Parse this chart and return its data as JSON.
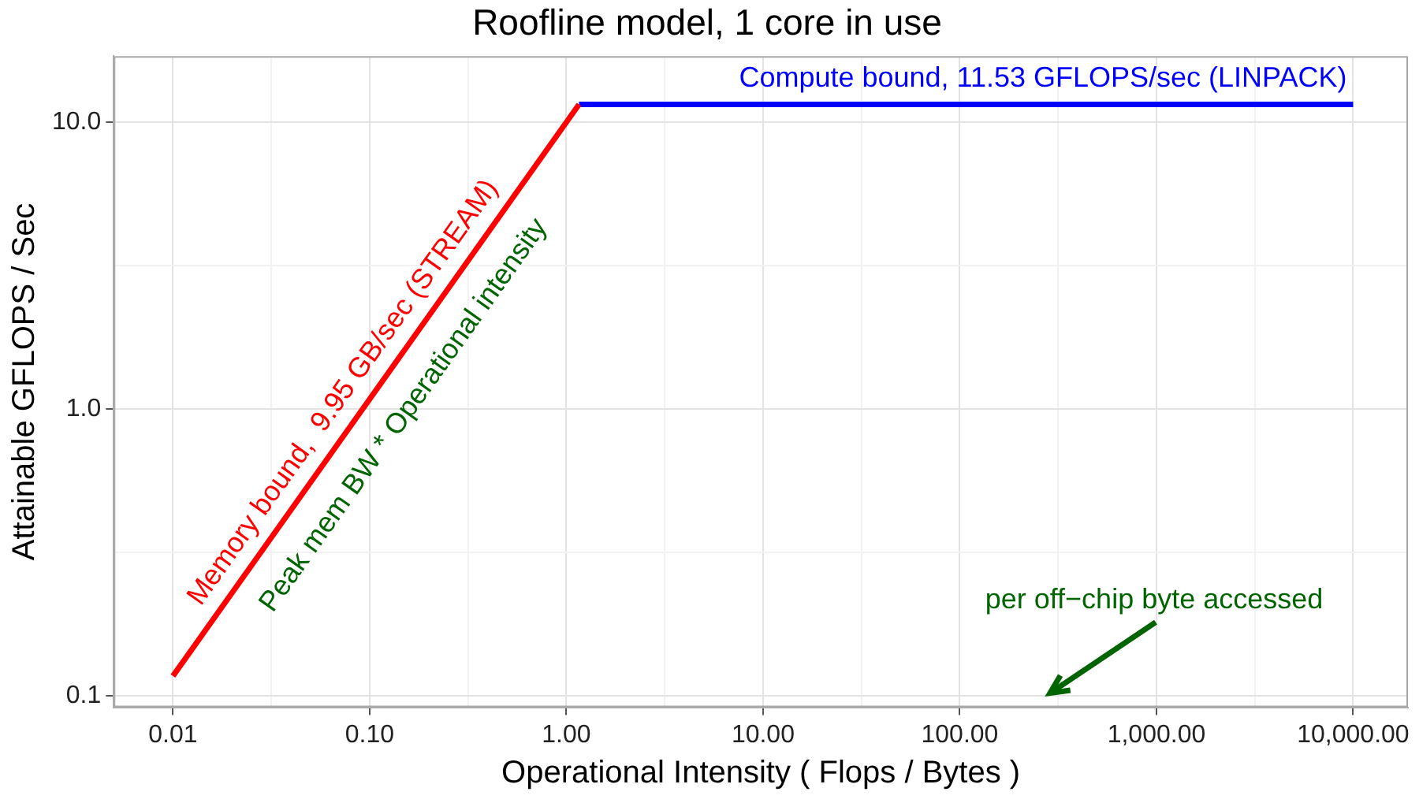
{
  "chart_data": {
    "type": "line",
    "title": "Roofline model, 1 core in use",
    "xlabel": "Operational Intensity ( Flops / Bytes )",
    "ylabel": "Attainable GFLOPS / Sec",
    "series": [
      {
        "name": "Memory bound,  9.95 GB/sec (STREAM)",
        "color": "#ff0000",
        "x": [
          0.01,
          1.16
        ],
        "values": [
          0.117,
          11.53
        ]
      },
      {
        "name": "Compute bound, 11.53 GFLOPS/sec (LINPACK)",
        "color": "#0000ff",
        "x": [
          1.16,
          10000
        ],
        "values": [
          11.53,
          11.53
        ]
      }
    ],
    "annotations": [
      {
        "text": "Peak mem BW * Operational intensity",
        "x": 0.104,
        "y": 1.13
      },
      "per off−chip byte accessed"
    ],
    "log": "xy",
    "xlim": [
      0.005,
      19000
    ],
    "ylim": [
      0.091,
      17
    ],
    "xticks": [
      0.01,
      {
        "value": 0.0316,
        "label": null
      },
      {
        "value": 0.1,
        "label": "0.10"
      },
      {
        "value": 0.316,
        "label": null
      },
      {
        "value": 1,
        "label": "1.00"
      },
      {
        "value": 3.16,
        "label": null
      },
      {
        "value": 10,
        "label": "10.00"
      },
      {
        "value": 31.6,
        "label": null
      },
      {
        "value": 100,
        "label": "100.00"
      },
      {
        "value": 316,
        "label": null
      },
      {
        "value": 1000,
        "label": "1,000.00"
      },
      {
        "value": 3162,
        "label": null
      },
      {
        "value": 10000,
        "label": "10,000.00"
      }
    ],
    "yticks": [
      0.1,
      {
        "value": 0.316,
        "label": null
      },
      {
        "value": 1,
        "label": "1.0"
      },
      {
        "value": 3.16,
        "label": null
      },
      {
        "value": 10,
        "label": "10.0"
      }
    ],
    "grid": true,
    "legend": false,
    "marker": "none",
    "line_style": "solid"
  }
}
